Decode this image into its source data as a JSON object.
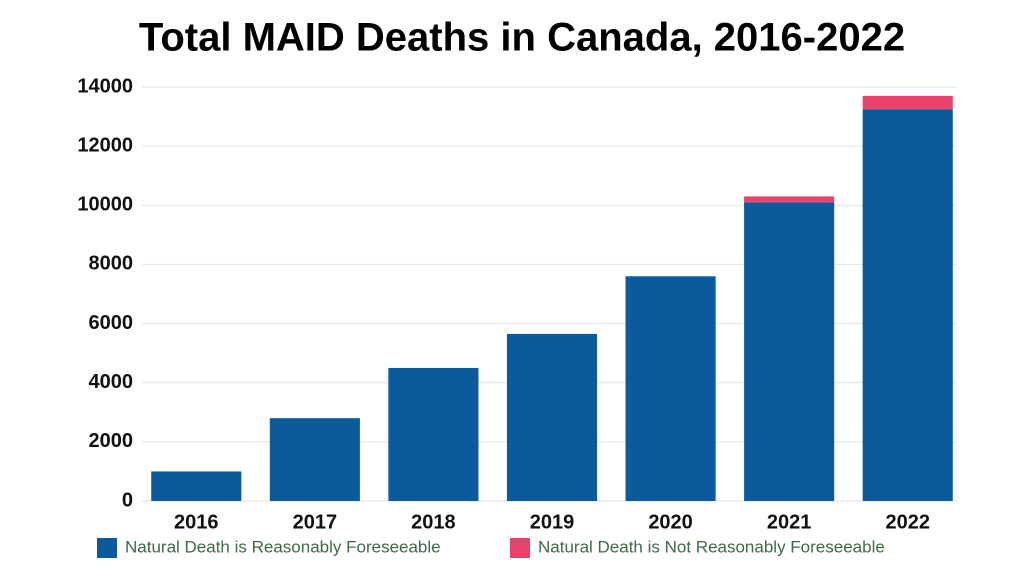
{
  "chart_data": {
    "type": "stacked-bar",
    "title": "Total MAID Deaths in Canada, 2016-2022",
    "categories": [
      "2016",
      "2017",
      "2018",
      "2019",
      "2020",
      "2021",
      "2022"
    ],
    "series": [
      {
        "name": "Natural Death is Reasonably Foreseeable",
        "color": "#0b5a9c",
        "values": [
          1000,
          2800,
          4500,
          5650,
          7600,
          10100,
          13250
        ]
      },
      {
        "name": "Natural Death is Not Reasonably Foreseeable",
        "color": "#e8436a",
        "values": [
          0,
          0,
          0,
          0,
          0,
          200,
          450
        ]
      }
    ],
    "ylim": [
      0,
      14000
    ],
    "yticks": [
      0,
      2000,
      4000,
      6000,
      8000,
      10000,
      12000,
      14000
    ],
    "grid": true,
    "legend": "bottom"
  }
}
